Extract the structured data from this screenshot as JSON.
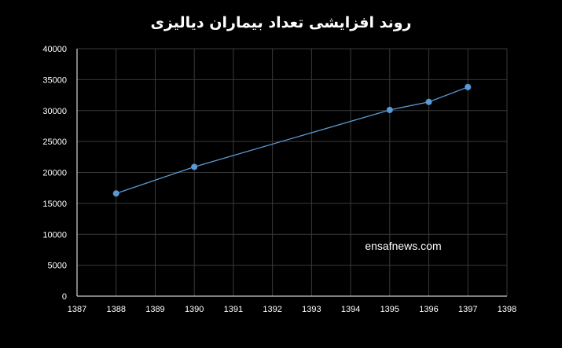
{
  "chart_data": {
    "type": "scatter",
    "title": "روند افزایشی تعداد بیماران دیالیزی",
    "xlabel": "",
    "ylabel": "",
    "xlim": [
      1387,
      1398
    ],
    "ylim": [
      0,
      40000
    ],
    "xticks": [
      1387,
      1388,
      1389,
      1390,
      1391,
      1392,
      1393,
      1394,
      1395,
      1396,
      1397,
      1398
    ],
    "yticks": [
      0,
      5000,
      10000,
      15000,
      20000,
      25000,
      30000,
      35000,
      40000
    ],
    "grid": true,
    "connected": true,
    "series": [
      {
        "x": [
          1388,
          1390,
          1395,
          1396,
          1397
        ],
        "y": [
          16600,
          20900,
          30100,
          31400,
          33800
        ]
      }
    ],
    "annotations": [
      "ensafnews.com"
    ],
    "colors": {
      "background": "#000000",
      "series": "#5B9BD5",
      "grid": "#3a3a3a",
      "text": "#ffffff"
    }
  }
}
